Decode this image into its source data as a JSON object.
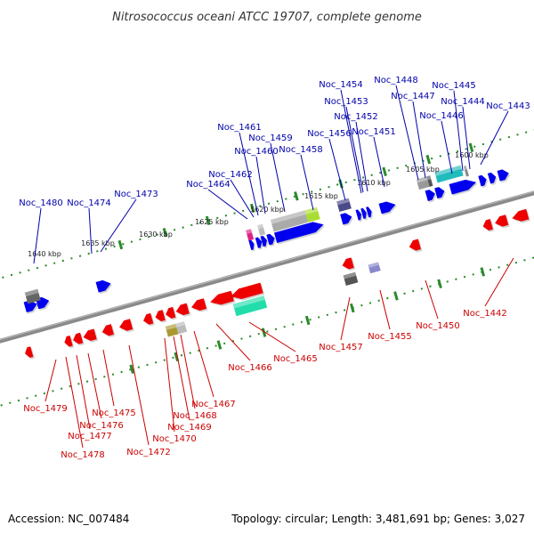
{
  "title": "Nitrosococcus oceani ATCC 19707, complete genome",
  "accession": "Accession: NC_007484",
  "summary": "Topology: circular; Length: 3,481,691 bp; Genes: 3,027",
  "colors": {
    "forward_strand": "#0000ee",
    "reverse_strand": "#ee0000",
    "label_forward": "#0000aa",
    "label_reverse": "#cc0000",
    "backbone": "#888888",
    "ticks": "#2a8a2a"
  },
  "scale_labels": [
    "1600 kbp",
    "1605 kbp",
    "1610 kbp",
    "1615 kbp",
    "1620 kbp",
    "1625 kbp",
    "1630 kbp",
    "1635 kbp",
    "1640 kbp"
  ],
  "forward_labels": [
    "Noc_1443",
    "Noc_1444",
    "Noc_1445",
    "Noc_1446",
    "Noc_1447",
    "Noc_1448",
    "Noc_1451",
    "Noc_1452",
    "Noc_1453",
    "Noc_1454",
    "Noc_1456",
    "Noc_1458",
    "Noc_1459",
    "Noc_1460",
    "Noc_1461",
    "Noc_1462",
    "Noc_1464",
    "Noc_1473",
    "Noc_1474",
    "Noc_1480"
  ],
  "reverse_labels": [
    "Noc_1442",
    "Noc_1450",
    "Noc_1455",
    "Noc_1457",
    "Noc_1465",
    "Noc_1466",
    "Noc_1467",
    "Noc_1468",
    "Noc_1469",
    "Noc_1470",
    "Noc_1472",
    "Noc_1475",
    "Noc_1476",
    "Noc_1477",
    "Noc_1478",
    "Noc_1479"
  ]
}
